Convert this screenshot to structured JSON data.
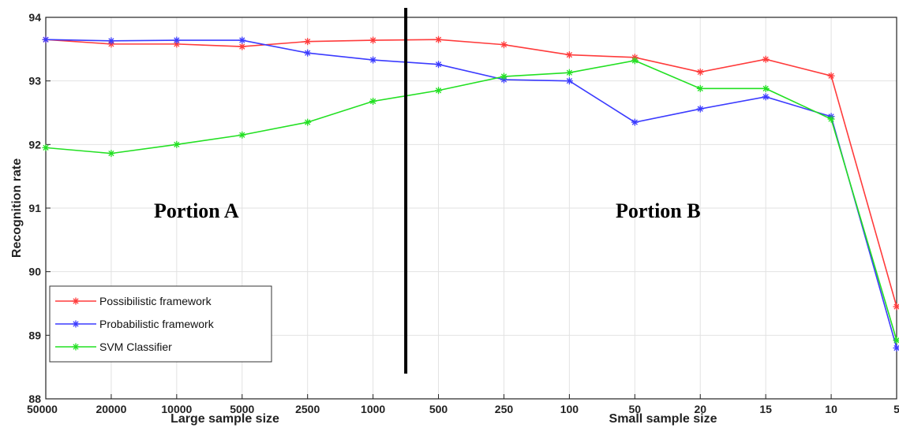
{
  "chart_data": {
    "type": "line",
    "categories": [
      "50000",
      "20000",
      "10000",
      "5000",
      "2500",
      "1000",
      "500",
      "250",
      "100",
      "50",
      "20",
      "15",
      "10",
      "5"
    ],
    "series": [
      {
        "name": "Possibilistic framework",
        "color": "#ff3b3b",
        "values": [
          93.65,
          93.58,
          93.58,
          93.54,
          93.62,
          93.64,
          93.65,
          93.57,
          93.41,
          93.37,
          93.14,
          93.34,
          93.08,
          89.45
        ]
      },
      {
        "name": "Probabilistic framework",
        "color": "#3b3bff",
        "values": [
          93.65,
          93.63,
          93.64,
          93.64,
          93.44,
          93.33,
          93.26,
          93.02,
          93.0,
          92.35,
          92.56,
          92.75,
          92.44,
          88.8
        ]
      },
      {
        "name": "SVM Classifier",
        "color": "#22e022",
        "values": [
          91.95,
          91.86,
          92.0,
          92.15,
          92.35,
          92.68,
          92.85,
          93.07,
          93.13,
          93.32,
          92.88,
          92.88,
          92.4,
          88.92
        ]
      }
    ],
    "ylabel": "Recognition rate",
    "xlabel_left": "Large sample size",
    "xlabel_right": "Small sample size",
    "ylim": [
      88,
      94
    ],
    "yticks": [
      "88",
      "89",
      "90",
      "91",
      "92",
      "93",
      "94"
    ],
    "annotations": {
      "portion_a": "Portion A",
      "portion_b": "Portion B"
    },
    "grid": true,
    "legend_position": "bottom-left",
    "divider": "thick vertical line between 1000 and 500"
  }
}
